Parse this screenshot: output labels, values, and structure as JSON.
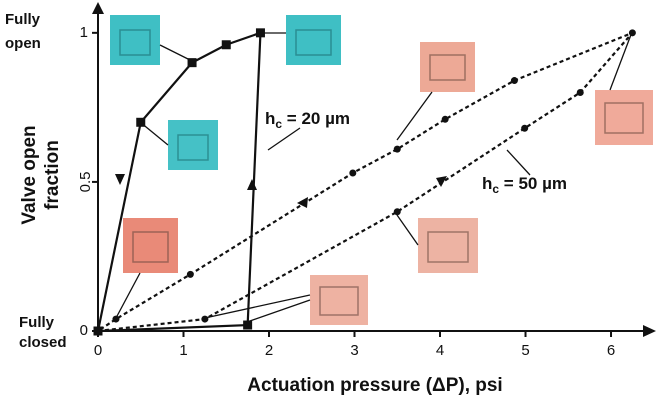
{
  "chart_data": {
    "type": "line",
    "xlabel": "Actuation pressure (ΔP), psi",
    "ylabel": [
      "Valve open",
      "fraction"
    ],
    "xlim": [
      0,
      6.45
    ],
    "ylim": [
      0,
      1.09
    ],
    "xticks": [
      0,
      1,
      2,
      3,
      4,
      5,
      6
    ],
    "yticks": [
      0,
      0.5,
      1
    ],
    "ytick_notes": [
      [
        "Fully",
        "closed"
      ],
      [
        "Fully",
        "open"
      ]
    ],
    "series": [
      {
        "label": [
          "h",
          "c",
          " = 20 µm"
        ],
        "color": "#111111",
        "dash": "solid",
        "marker": "square",
        "x": [
          0,
          1.75,
          1.9,
          1.5,
          1.1,
          0.5,
          0
        ],
        "values": [
          0,
          0.02,
          1.0,
          0.96,
          0.9,
          0.7,
          0
        ]
      },
      {
        "label": [
          "h",
          "c",
          " = 50 µm"
        ],
        "color": "#111111",
        "dash": "dotted",
        "marker": "circle",
        "x": [
          0,
          1.25,
          3.5,
          4.99,
          5.64,
          6.25,
          4.87,
          4.06,
          3.5,
          2.98,
          1.08,
          0.21,
          0
        ],
        "values": [
          0,
          0.04,
          0.4,
          0.68,
          0.8,
          1.0,
          0.84,
          0.71,
          0.61,
          0.53,
          0.19,
          0.04,
          0
        ]
      }
    ]
  }
}
